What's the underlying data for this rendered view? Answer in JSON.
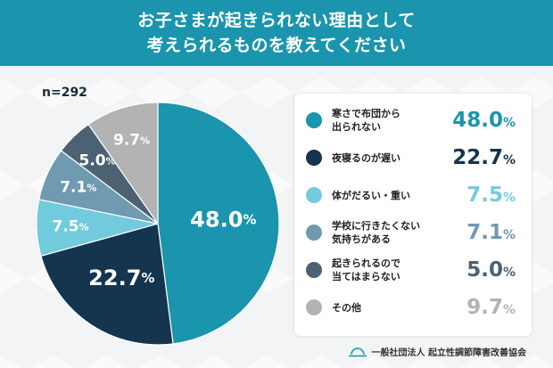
{
  "title": {
    "line1": "お子さまが起きられない理由として",
    "line2": "考えられるものを教えてください"
  },
  "sample_size": "n=292",
  "footer": {
    "organization": "一般社団法人 起立性調節障害改善協会"
  },
  "chart_data": {
    "type": "pie",
    "title": "お子さまが起きられない理由として考えられるものを教えてください",
    "unit": "%",
    "slices": [
      {
        "label_lines": [
          "寒さで布団から",
          "出られない"
        ],
        "value": 48.0,
        "display": "48.0",
        "color": "#1a95ad",
        "label_color": "#ffffff",
        "legend_value_color": "#1a95ad"
      },
      {
        "label_lines": [
          "夜寝るのが遅い"
        ],
        "value": 22.7,
        "display": "22.7",
        "color": "#15354f",
        "label_color": "#ffffff",
        "legend_value_color": "#15354f"
      },
      {
        "label_lines": [
          "体がだるい・重い"
        ],
        "value": 7.5,
        "display": "7.5",
        "color": "#72cbdc",
        "label_color": "#ffffff",
        "legend_value_color": "#72cbdc"
      },
      {
        "label_lines": [
          "学校に行きたくない",
          "気持ちがある"
        ],
        "value": 7.1,
        "display": "7.1",
        "color": "#6f9ab0",
        "label_color": "#ffffff",
        "legend_value_color": "#6f9ab0"
      },
      {
        "label_lines": [
          "起きられるので",
          "当てはまらない"
        ],
        "value": 5.0,
        "display": "5.0",
        "color": "#4c6273",
        "label_color": "#ffffff",
        "legend_value_color": "#4c6273"
      },
      {
        "label_lines": [
          "その他"
        ],
        "value": 9.7,
        "display": "9.7",
        "color": "#b3b3b3",
        "label_color": "#ffffff",
        "legend_value_color": "#b3b3b3"
      }
    ]
  }
}
